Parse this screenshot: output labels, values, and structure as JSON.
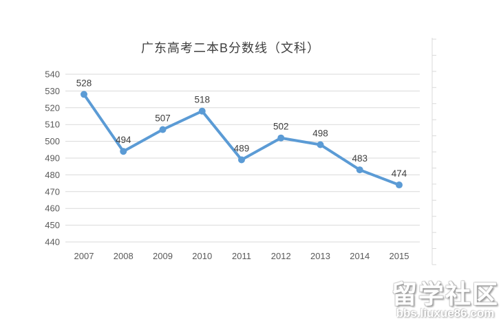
{
  "chart_data": {
    "type": "line",
    "title": "广东高考二本B分数线（文科）",
    "categories": [
      "2007",
      "2008",
      "2009",
      "2010",
      "2011",
      "2012",
      "2013",
      "2014",
      "2015"
    ],
    "values": [
      528,
      494,
      507,
      518,
      489,
      502,
      498,
      483,
      474
    ],
    "xlabel": "",
    "ylabel": "",
    "ylim": [
      440,
      540
    ],
    "ytick_step": 10,
    "grid": true,
    "legend": "none",
    "data_labels": true,
    "line_color": "#5b9bd5",
    "marker_color": "#5b9bd5",
    "grid_color": "#d9d9d9",
    "axis_text_color": "#595959",
    "data_label_color": "#3d3d3d",
    "title_color": "#3f3f3f"
  },
  "watermark": {
    "site_name": "留学社区",
    "site_url": "bbs.liuxue86.com"
  }
}
